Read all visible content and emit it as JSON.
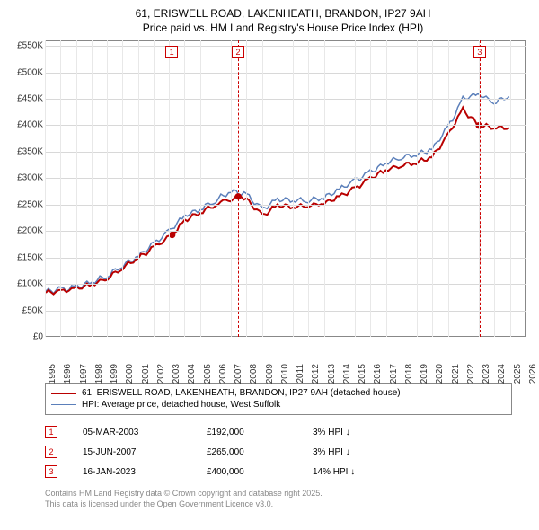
{
  "title": {
    "line1": "61, ERISWELL ROAD, LAKENHEATH, BRANDON, IP27 9AH",
    "line2": "Price paid vs. HM Land Registry's House Price Index (HPI)"
  },
  "chart": {
    "type": "line",
    "background_color": "#ffffff",
    "grid_color": "#e8e8e8",
    "border_color": "#888888",
    "ylim": [
      0,
      560000
    ],
    "yticks": [
      0,
      50000,
      100000,
      150000,
      200000,
      250000,
      300000,
      350000,
      400000,
      450000,
      500000,
      550000
    ],
    "ytick_labels": [
      "£0",
      "£50K",
      "£100K",
      "£150K",
      "£200K",
      "£250K",
      "£300K",
      "£350K",
      "£400K",
      "£450K",
      "£500K",
      "£550K"
    ],
    "xlim": [
      1995,
      2026
    ],
    "xticks": [
      1995,
      1996,
      1997,
      1998,
      1999,
      2000,
      2001,
      2002,
      2003,
      2004,
      2005,
      2006,
      2007,
      2008,
      2009,
      2010,
      2011,
      2012,
      2013,
      2014,
      2015,
      2016,
      2017,
      2018,
      2019,
      2020,
      2021,
      2022,
      2023,
      2024,
      2025,
      2026
    ],
    "future_band": {
      "start": 2024.3,
      "end": 2026,
      "color": "#d8e4f4"
    },
    "marker_lines": [
      {
        "id": "1",
        "x": 2003.18
      },
      {
        "id": "2",
        "x": 2007.46
      },
      {
        "id": "3",
        "x": 2023.04
      }
    ],
    "marker_line_color": "#cc0000",
    "series": [
      {
        "name": "price_paid",
        "label": "61, ERISWELL ROAD, LAKENHEATH, BRANDON, IP27 9AH (detached house)",
        "color": "#b90000",
        "line_width": 2,
        "points": [
          [
            1995,
            82
          ],
          [
            1996,
            85
          ],
          [
            1997,
            90
          ],
          [
            1998,
            98
          ],
          [
            1999,
            110
          ],
          [
            2000,
            130
          ],
          [
            2001,
            148
          ],
          [
            2002,
            168
          ],
          [
            2003.18,
            192
          ],
          [
            2004,
            220
          ],
          [
            2005,
            235
          ],
          [
            2006,
            250
          ],
          [
            2007.46,
            265
          ],
          [
            2008,
            260
          ],
          [
            2009,
            228
          ],
          [
            2010,
            248
          ],
          [
            2011,
            245
          ],
          [
            2012,
            248
          ],
          [
            2013,
            252
          ],
          [
            2014,
            265
          ],
          [
            2015,
            280
          ],
          [
            2016,
            300
          ],
          [
            2017,
            315
          ],
          [
            2018,
            325
          ],
          [
            2019,
            330
          ],
          [
            2020,
            340
          ],
          [
            2021,
            380
          ],
          [
            2022,
            430
          ],
          [
            2023.04,
            400
          ],
          [
            2024,
            397
          ],
          [
            2025,
            395
          ]
        ],
        "sale_points": [
          [
            2003.18,
            192
          ],
          [
            2007.46,
            265
          ],
          [
            2023.04,
            400
          ]
        ]
      },
      {
        "name": "hpi",
        "label": "HPI: Average price, detached house, West Suffolk",
        "color": "#5b7fba",
        "line_width": 1.5,
        "points": [
          [
            1995,
            85
          ],
          [
            1996,
            88
          ],
          [
            1997,
            93
          ],
          [
            1998,
            102
          ],
          [
            1999,
            115
          ],
          [
            2000,
            135
          ],
          [
            2001,
            152
          ],
          [
            2002,
            175
          ],
          [
            2003,
            200
          ],
          [
            2004,
            228
          ],
          [
            2005,
            242
          ],
          [
            2006,
            258
          ],
          [
            2007,
            275
          ],
          [
            2008,
            268
          ],
          [
            2009,
            240
          ],
          [
            2010,
            260
          ],
          [
            2011,
            258
          ],
          [
            2012,
            258
          ],
          [
            2013,
            263
          ],
          [
            2014,
            278
          ],
          [
            2015,
            295
          ],
          [
            2016,
            312
          ],
          [
            2017,
            328
          ],
          [
            2018,
            340
          ],
          [
            2019,
            345
          ],
          [
            2020,
            355
          ],
          [
            2021,
            395
          ],
          [
            2022,
            450
          ],
          [
            2023,
            460
          ],
          [
            2024,
            445
          ],
          [
            2025,
            455
          ]
        ]
      }
    ]
  },
  "legend": {
    "items": [
      {
        "color": "#b90000",
        "width": 2,
        "label": "61, ERISWELL ROAD, LAKENHEATH, BRANDON, IP27 9AH (detached house)"
      },
      {
        "color": "#5b7fba",
        "width": 1.5,
        "label": "HPI: Average price, detached house, West Suffolk"
      }
    ]
  },
  "sales": [
    {
      "id": "1",
      "date": "05-MAR-2003",
      "price": "£192,000",
      "diff": "3%",
      "diff_dir": "down",
      "suffix": "HPI"
    },
    {
      "id": "2",
      "date": "15-JUN-2007",
      "price": "£265,000",
      "diff": "3%",
      "diff_dir": "down",
      "suffix": "HPI"
    },
    {
      "id": "3",
      "date": "16-JAN-2023",
      "price": "£400,000",
      "diff": "14%",
      "diff_dir": "down",
      "suffix": "HPI"
    }
  ],
  "footer": {
    "line1": "Contains HM Land Registry data © Crown copyright and database right 2025.",
    "line2": "This data is licensed under the Open Government Licence v3.0."
  },
  "fontsize": {
    "title": 12,
    "axis": 10,
    "legend": 10,
    "footer": 9
  }
}
